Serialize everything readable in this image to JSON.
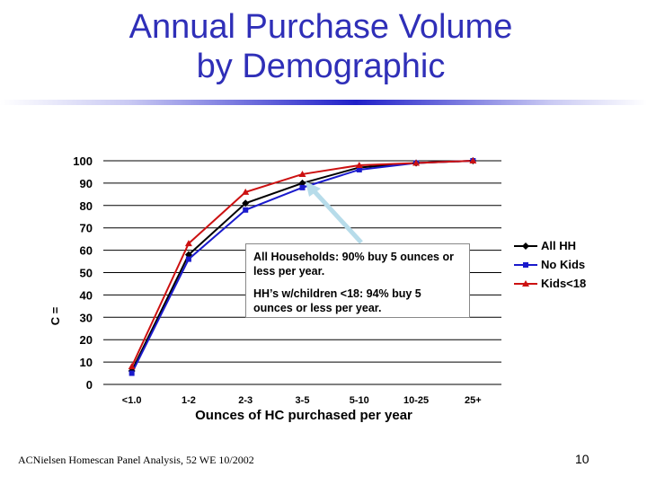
{
  "slide": {
    "title_line1": "Annual Purchase Volume",
    "title_line2": "by Demographic",
    "footer": "ACNielsen Homescan Panel Analysis, 52 WE 10/2002",
    "page_number": "10"
  },
  "annotation": {
    "line1": "All Households:  90% buy 5 ounces or less per year.",
    "line2": "HH’s w/children <18:  94% buy 5 ounces or less per year."
  },
  "colors": {
    "title": "#2f2fb8",
    "all_hh": "#000000",
    "no_kids": "#1a1acc",
    "kids": "#cc1111",
    "arrow": "#b7dcea"
  },
  "chart_data": {
    "type": "line",
    "title": "",
    "xlabel": "Ounces of HC purchased per year",
    "ylabel": "C =",
    "ylim": [
      0,
      100
    ],
    "yticks": [
      0,
      10,
      20,
      30,
      40,
      50,
      60,
      70,
      80,
      90,
      100
    ],
    "categories": [
      "<1.0",
      "1-2",
      "2-3",
      "3-5",
      "5-10",
      "10-25",
      "25+"
    ],
    "series": [
      {
        "name": "All HH",
        "color": "#000000",
        "marker": "diamond",
        "values": [
          6,
          58,
          81,
          90,
          97,
          99,
          100
        ]
      },
      {
        "name": "No Kids",
        "color": "#1a1acc",
        "marker": "square",
        "values": [
          5,
          56,
          78,
          88,
          96,
          99,
          100
        ]
      },
      {
        "name": "Kids<18",
        "color": "#cc1111",
        "marker": "triangle",
        "values": [
          8,
          63,
          86,
          94,
          98,
          99,
          100
        ]
      }
    ],
    "legend_position": "right"
  }
}
